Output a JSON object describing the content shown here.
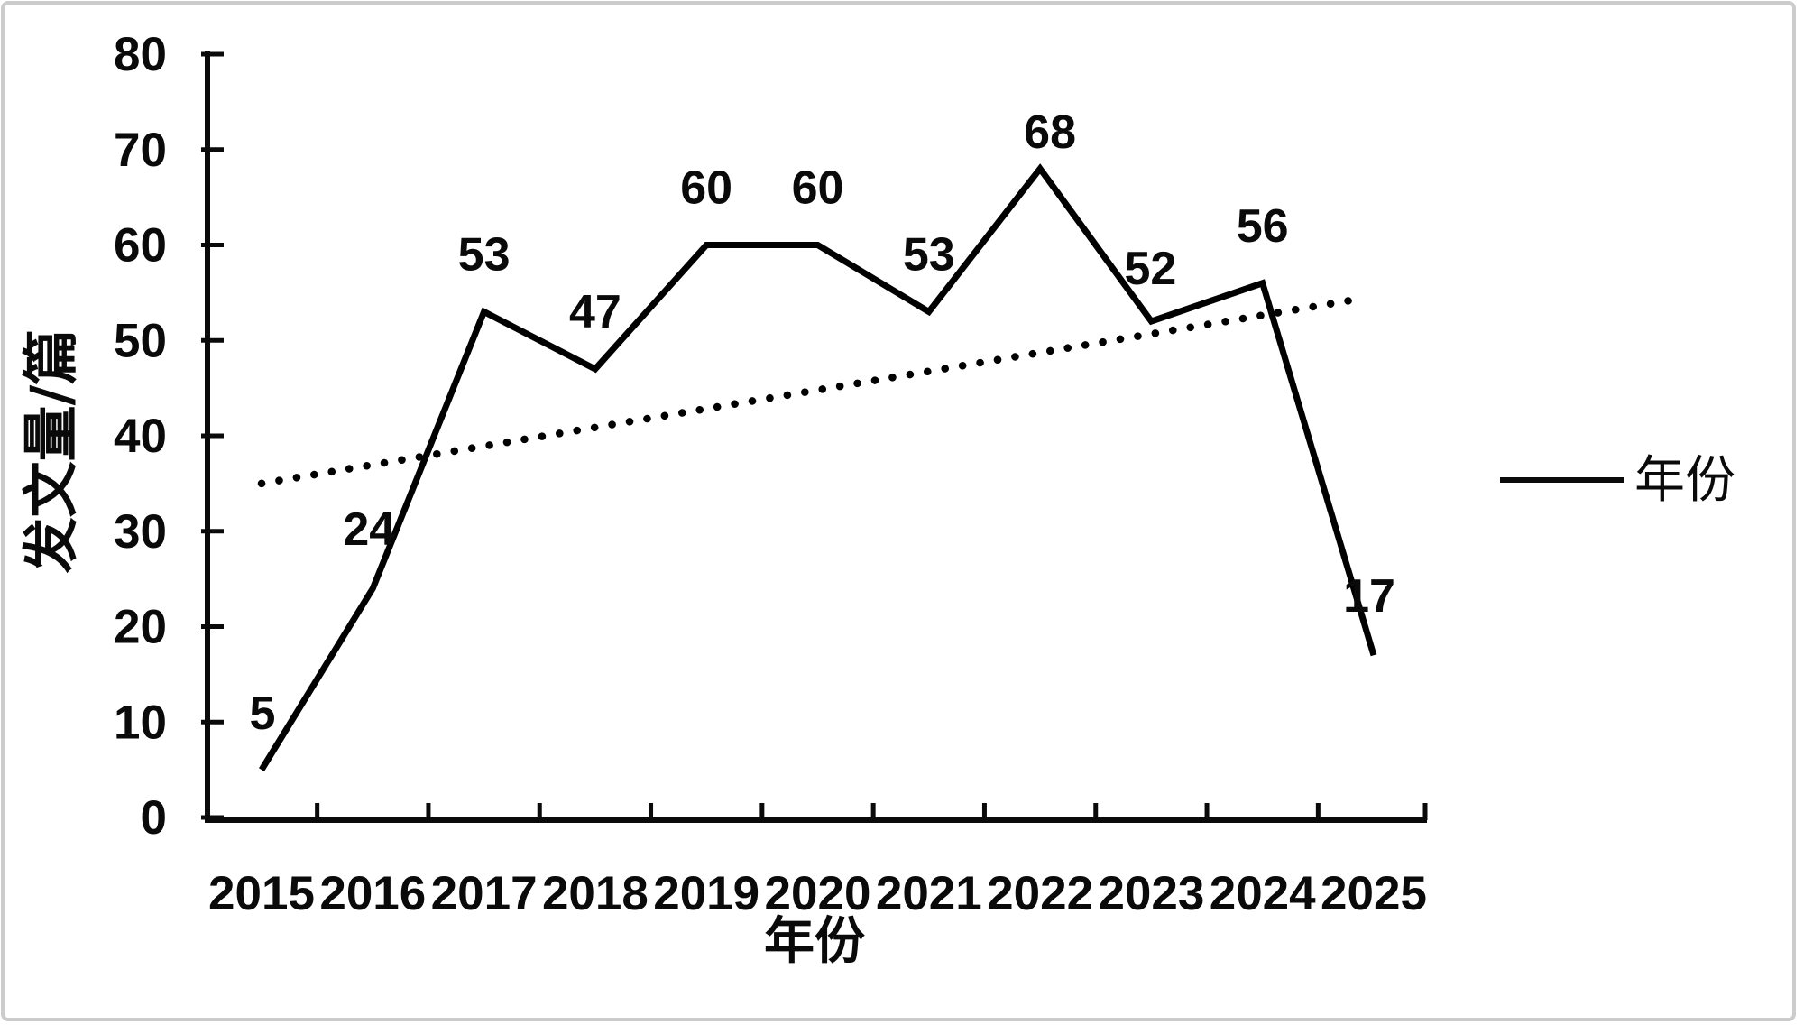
{
  "chart_data": {
    "type": "line",
    "title": "",
    "xlabel": "年份",
    "ylabel": "发文量/篇",
    "categories": [
      "2015",
      "2016",
      "2017",
      "2018",
      "2019",
      "2020",
      "2021",
      "2022",
      "2023",
      "2024",
      "2025"
    ],
    "series": [
      {
        "name": "年份",
        "style": "solid",
        "color": "#000000",
        "values": [
          5,
          24,
          53,
          47,
          60,
          60,
          53,
          68,
          52,
          56,
          17
        ]
      }
    ],
    "trend": {
      "style": "dotted",
      "color": "#000000",
      "x_start": 2015.0,
      "y_start": 35,
      "x_end": 2024.9,
      "y_end": 54.4
    },
    "ylim": [
      0,
      80
    ],
    "y_ticks": [
      0,
      10,
      20,
      30,
      40,
      50,
      60,
      70,
      80
    ],
    "grid": false,
    "legend_position": "right-middle",
    "data_labels": [
      "5",
      "24",
      "53",
      "47",
      "60",
      "60",
      "53",
      "68",
      "52",
      "56",
      "17"
    ]
  },
  "legend": {
    "entry_label": "年份"
  },
  "titles": {
    "x_axis": "年份",
    "y_axis": "发文量/篇"
  },
  "frame": {
    "border_color": "#cccccc",
    "background": "#ffffff",
    "line_color": "#0a0a0a"
  }
}
